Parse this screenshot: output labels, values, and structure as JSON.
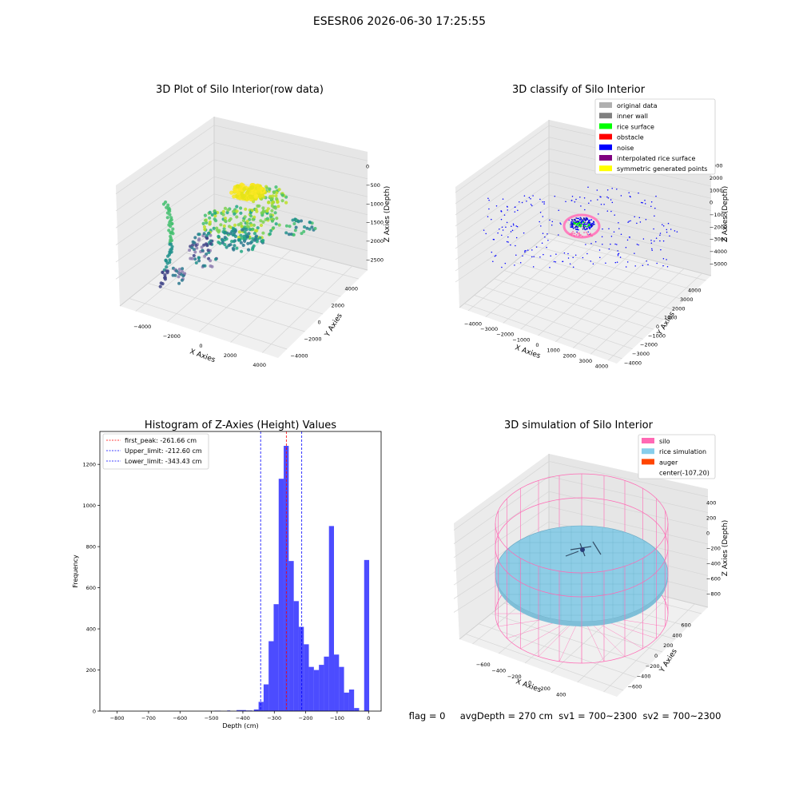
{
  "suptitle": "ESESR06 2026-06-30 17:25:55",
  "status_line": "flag = 0     avgDepth = 270 cm  sv1 = 700~2300  sv2 = 700~2300",
  "chart_data": [
    {
      "type": "scatter3d",
      "title": "3D Plot of Silo Interior(row data)",
      "xlabel": "X Axies",
      "ylabel": "Y Axies",
      "zlabel": "Z Axies (Depth)",
      "x_ticks": [
        -4000,
        -2000,
        0,
        2000,
        4000
      ],
      "y_ticks": [
        -4000,
        -2000,
        0,
        2000,
        4000
      ],
      "z_ticks": [
        -2500,
        -2000,
        -1500,
        -1000,
        -500,
        0
      ],
      "xlim": [
        -4800,
        4800
      ],
      "ylim": [
        -4800,
        4800
      ],
      "zlim": [
        -2700,
        100
      ],
      "colormap": "viridis",
      "grid": true
    },
    {
      "type": "scatter3d",
      "title": "3D classify of Silo Interior",
      "xlabel": "X Axies",
      "ylabel": "Y Axies",
      "zlabel": "Z Axies (Depth)",
      "x_ticks": [
        -4000,
        -3000,
        -2000,
        -1000,
        0,
        1000,
        2000,
        3000,
        4000
      ],
      "y_ticks": [
        -4000,
        -3000,
        -2000,
        -1000,
        0,
        1000,
        2000,
        3000,
        4000
      ],
      "z_ticks": [
        -5000,
        -4000,
        -3000,
        -2000,
        -1000,
        0,
        1000,
        2000,
        3000
      ],
      "legend_position": "top-right",
      "grid": true,
      "legend": [
        {
          "label": "original data",
          "color": "#b0b0b0"
        },
        {
          "label": "inner wall",
          "color": "#808080"
        },
        {
          "label": "rice surface",
          "color": "#00ff00"
        },
        {
          "label": "obstacle",
          "color": "#ff0000"
        },
        {
          "label": "noise",
          "color": "#0000ff"
        },
        {
          "label": "interpolated rice surface",
          "color": "#800080"
        },
        {
          "label": "symmetric generated points",
          "color": "#ffff00"
        }
      ]
    },
    {
      "type": "bar",
      "title": "Histogram of Z-Axies (Height) Values",
      "xlabel": "Depth (cm)",
      "ylabel": "Frequency",
      "xlim": [
        -855,
        40
      ],
      "ylim": [
        0,
        1360
      ],
      "x_ticks": [
        -800,
        -700,
        -600,
        -500,
        -400,
        -300,
        -200,
        -100,
        0
      ],
      "y_ticks": [
        0,
        200,
        400,
        600,
        800,
        1000,
        1200
      ],
      "bar_color": "#0000ff",
      "legend_position": "top-left",
      "bins": [
        {
          "x0": -490,
          "x1": -470,
          "v": 2
        },
        {
          "x0": -450,
          "x1": -440,
          "v": 3
        },
        {
          "x0": -420,
          "x1": -390,
          "v": 5
        },
        {
          "x0": -390,
          "x1": -370,
          "v": 3
        },
        {
          "x0": -365,
          "x1": -350,
          "v": 8
        },
        {
          "x0": -350,
          "x1": -334,
          "v": 45
        },
        {
          "x0": -334,
          "x1": -318,
          "v": 130
        },
        {
          "x0": -318,
          "x1": -302,
          "v": 340
        },
        {
          "x0": -302,
          "x1": -286,
          "v": 520
        },
        {
          "x0": -286,
          "x1": -270,
          "v": 1130
        },
        {
          "x0": -270,
          "x1": -254,
          "v": 1290
        },
        {
          "x0": -254,
          "x1": -238,
          "v": 730
        },
        {
          "x0": -238,
          "x1": -222,
          "v": 535
        },
        {
          "x0": -222,
          "x1": -206,
          "v": 410
        },
        {
          "x0": -206,
          "x1": -190,
          "v": 325
        },
        {
          "x0": -190,
          "x1": -174,
          "v": 215
        },
        {
          "x0": -174,
          "x1": -158,
          "v": 200
        },
        {
          "x0": -158,
          "x1": -142,
          "v": 225
        },
        {
          "x0": -142,
          "x1": -126,
          "v": 265
        },
        {
          "x0": -126,
          "x1": -110,
          "v": 900
        },
        {
          "x0": -110,
          "x1": -94,
          "v": 275
        },
        {
          "x0": -94,
          "x1": -78,
          "v": 215
        },
        {
          "x0": -78,
          "x1": -62,
          "v": 90
        },
        {
          "x0": -62,
          "x1": -46,
          "v": 105
        },
        {
          "x0": -46,
          "x1": -30,
          "v": 15
        },
        {
          "x0": -14,
          "x1": 2,
          "v": 735
        }
      ],
      "vlines": [
        {
          "label": "first_peak: -261.66 cm",
          "x": -261.66,
          "color": "#ff0000"
        },
        {
          "label": "Upper_limit: -212.60 cm",
          "x": -212.6,
          "color": "#0000ff"
        },
        {
          "label": "Lower_limit: -343.43 cm",
          "x": -343.43,
          "color": "#0000ff"
        }
      ]
    },
    {
      "type": "surface3d",
      "title": "3D simulation of Silo Interior",
      "xlabel": "X Axies",
      "ylabel": "Y Axies",
      "zlabel": "Z Axies (Depth)",
      "x_ticks": [
        -600,
        -400,
        -200,
        0,
        200,
        400
      ],
      "y_ticks": [
        -600,
        -400,
        -200,
        0,
        200,
        400,
        600
      ],
      "z_ticks": [
        -800,
        -600,
        -400,
        -200,
        0,
        200,
        400
      ],
      "legend_position": "top-right",
      "grid": true,
      "legend": [
        {
          "label": "silo",
          "color": "#ff69b4"
        },
        {
          "label": "rice simulation",
          "color": "#87ceeb"
        },
        {
          "label": "auger",
          "color": "#ff4500"
        },
        {
          "label": "center(-107,20)",
          "color": ""
        }
      ]
    }
  ]
}
